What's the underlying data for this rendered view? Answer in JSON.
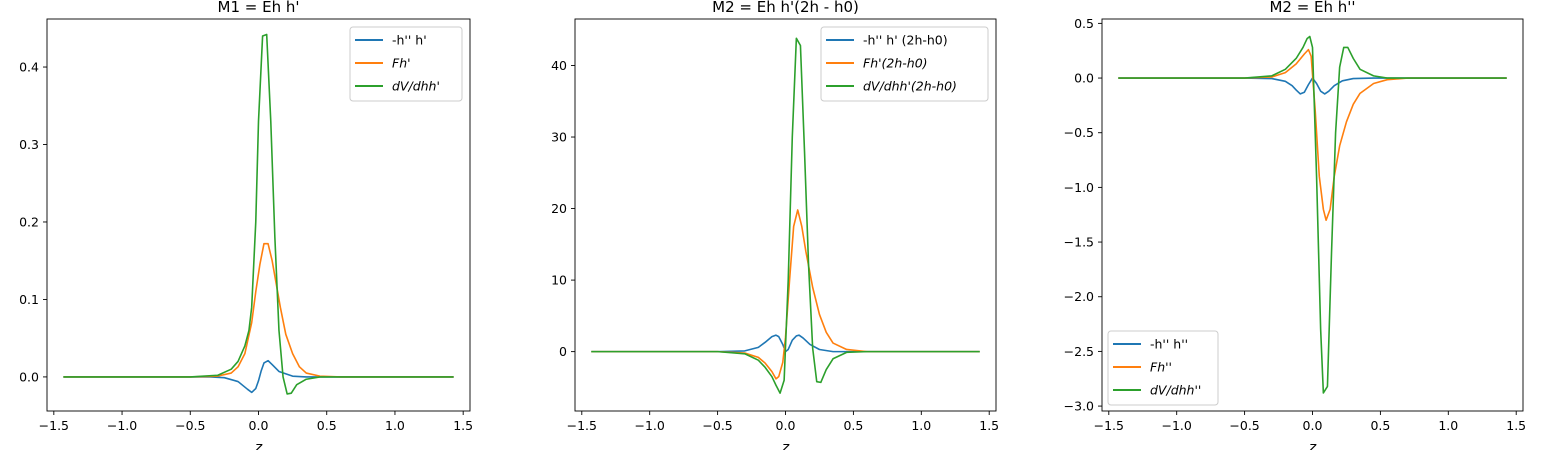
{
  "colors": {
    "blue": "#1f77b4",
    "orange": "#ff7f0e",
    "green": "#2ca02c"
  },
  "chart_data": [
    {
      "type": "line",
      "title": "M1 = Eh h'",
      "xlabel": "z",
      "ylabel": "",
      "xlim": [
        -1.55,
        1.55
      ],
      "ylim": [
        -0.044,
        0.462
      ],
      "xticks": [
        -1.5,
        -1.0,
        -0.5,
        0.0,
        0.5,
        1.0,
        1.5
      ],
      "xtick_labels": [
        "−1.5",
        "−1.0",
        "−0.5",
        "0.0",
        "0.5",
        "1.0",
        "1.5"
      ],
      "yticks": [
        0.0,
        0.1,
        0.2,
        0.3,
        0.4
      ],
      "ytick_labels": [
        "0.0",
        "0.1",
        "0.2",
        "0.3",
        "0.4"
      ],
      "legend_position": "upper right",
      "series": [
        {
          "name": "-h'' h'",
          "color": "#1f77b4",
          "points": [
            [
              -1.43,
              0
            ],
            [
              -0.6,
              0
            ],
            [
              -0.35,
              0
            ],
            [
              -0.25,
              -0.001
            ],
            [
              -0.15,
              -0.006
            ],
            [
              -0.08,
              -0.016
            ],
            [
              -0.05,
              -0.02
            ],
            [
              -0.02,
              -0.015
            ],
            [
              0.0,
              -0.005
            ],
            [
              0.02,
              0.008
            ],
            [
              0.04,
              0.018
            ],
            [
              0.07,
              0.021
            ],
            [
              0.1,
              0.016
            ],
            [
              0.15,
              0.007
            ],
            [
              0.25,
              0.001
            ],
            [
              0.35,
              0
            ],
            [
              0.6,
              0
            ],
            [
              1.43,
              0
            ]
          ]
        },
        {
          "name": "Fh'",
          "color": "#ff7f0e",
          "points": [
            [
              -1.43,
              0
            ],
            [
              -0.5,
              0
            ],
            [
              -0.3,
              0.001
            ],
            [
              -0.2,
              0.005
            ],
            [
              -0.15,
              0.013
            ],
            [
              -0.1,
              0.03
            ],
            [
              -0.05,
              0.07
            ],
            [
              -0.02,
              0.11
            ],
            [
              0.01,
              0.145
            ],
            [
              0.04,
              0.172
            ],
            [
              0.07,
              0.172
            ],
            [
              0.1,
              0.15
            ],
            [
              0.13,
              0.12
            ],
            [
              0.16,
              0.09
            ],
            [
              0.2,
              0.055
            ],
            [
              0.25,
              0.03
            ],
            [
              0.3,
              0.013
            ],
            [
              0.35,
              0.005
            ],
            [
              0.45,
              0.001
            ],
            [
              0.6,
              0
            ],
            [
              1.43,
              0
            ]
          ]
        },
        {
          "name": "dV/dhh'",
          "color": "#2ca02c",
          "points": [
            [
              -1.43,
              0
            ],
            [
              -0.5,
              0
            ],
            [
              -0.3,
              0.002
            ],
            [
              -0.2,
              0.01
            ],
            [
              -0.15,
              0.02
            ],
            [
              -0.1,
              0.04
            ],
            [
              -0.07,
              0.06
            ],
            [
              -0.05,
              0.09
            ],
            [
              -0.02,
              0.2
            ],
            [
              0.0,
              0.33
            ],
            [
              0.03,
              0.44
            ],
            [
              0.06,
              0.442
            ],
            [
              0.09,
              0.33
            ],
            [
              0.12,
              0.18
            ],
            [
              0.15,
              0.06
            ],
            [
              0.18,
              0.0
            ],
            [
              0.21,
              -0.022
            ],
            [
              0.24,
              -0.021
            ],
            [
              0.28,
              -0.01
            ],
            [
              0.35,
              -0.003
            ],
            [
              0.45,
              0
            ],
            [
              1.43,
              0
            ]
          ]
        }
      ]
    },
    {
      "type": "line",
      "title": "M2 = Eh h'(2h - h0)",
      "xlabel": "z",
      "ylabel": "",
      "xlim": [
        -1.55,
        1.55
      ],
      "ylim": [
        -8.3,
        46.5
      ],
      "xticks": [
        -1.5,
        -1.0,
        -0.5,
        0.0,
        0.5,
        1.0,
        1.5
      ],
      "xtick_labels": [
        "−1.5",
        "−1.0",
        "−0.5",
        "0.0",
        "0.5",
        "1.0",
        "1.5"
      ],
      "yticks": [
        0,
        10,
        20,
        30,
        40
      ],
      "ytick_labels": [
        "0",
        "10",
        "20",
        "30",
        "40"
      ],
      "legend_position": "upper right",
      "series": [
        {
          "name": "-h'' h' (2h-h0)",
          "color": "#1f77b4",
          "points": [
            [
              -1.43,
              0
            ],
            [
              -0.5,
              0
            ],
            [
              -0.3,
              0.1
            ],
            [
              -0.2,
              0.6
            ],
            [
              -0.15,
              1.3
            ],
            [
              -0.1,
              2.1
            ],
            [
              -0.07,
              2.3
            ],
            [
              -0.05,
              2.1
            ],
            [
              -0.02,
              1.0
            ],
            [
              0.0,
              0
            ],
            [
              0.02,
              0.3
            ],
            [
              0.05,
              1.6
            ],
            [
              0.08,
              2.2
            ],
            [
              0.1,
              2.3
            ],
            [
              0.13,
              1.9
            ],
            [
              0.18,
              1.0
            ],
            [
              0.25,
              0.3
            ],
            [
              0.35,
              0
            ],
            [
              1.43,
              0
            ]
          ]
        },
        {
          "name": "Fh'(2h-h0)",
          "color": "#ff7f0e",
          "points": [
            [
              -1.43,
              0
            ],
            [
              -0.5,
              0
            ],
            [
              -0.3,
              -0.2
            ],
            [
              -0.2,
              -0.8
            ],
            [
              -0.15,
              -1.6
            ],
            [
              -0.1,
              -2.8
            ],
            [
              -0.07,
              -3.8
            ],
            [
              -0.05,
              -3.5
            ],
            [
              -0.02,
              -1.5
            ],
            [
              0.0,
              2.0
            ],
            [
              0.03,
              10
            ],
            [
              0.06,
              17.5
            ],
            [
              0.09,
              19.8
            ],
            [
              0.12,
              17.5
            ],
            [
              0.15,
              14
            ],
            [
              0.2,
              9
            ],
            [
              0.25,
              5.2
            ],
            [
              0.3,
              2.7
            ],
            [
              0.35,
              1.2
            ],
            [
              0.45,
              0.3
            ],
            [
              0.6,
              0
            ],
            [
              1.43,
              0
            ]
          ]
        },
        {
          "name": "dV/dhh'(2h-h0)",
          "color": "#2ca02c",
          "points": [
            [
              -1.43,
              0
            ],
            [
              -0.5,
              0
            ],
            [
              -0.3,
              -0.3
            ],
            [
              -0.2,
              -1.2
            ],
            [
              -0.15,
              -2.2
            ],
            [
              -0.1,
              -3.5
            ],
            [
              -0.07,
              -4.7
            ],
            [
              -0.04,
              -5.8
            ],
            [
              -0.01,
              -4.0
            ],
            [
              0.02,
              10
            ],
            [
              0.05,
              30
            ],
            [
              0.08,
              43.8
            ],
            [
              0.11,
              42.8
            ],
            [
              0.14,
              28
            ],
            [
              0.17,
              12
            ],
            [
              0.2,
              0.5
            ],
            [
              0.23,
              -4.2
            ],
            [
              0.26,
              -4.3
            ],
            [
              0.3,
              -2.5
            ],
            [
              0.35,
              -1.0
            ],
            [
              0.45,
              -0.1
            ],
            [
              0.6,
              0
            ],
            [
              1.43,
              0
            ]
          ]
        }
      ]
    },
    {
      "type": "line",
      "title": "M2 = Eh h''",
      "xlabel": "z",
      "ylabel": "",
      "xlim": [
        -1.55,
        1.55
      ],
      "ylim": [
        -3.045,
        0.54
      ],
      "xticks": [
        -1.5,
        -1.0,
        -0.5,
        0.0,
        0.5,
        1.0,
        1.5
      ],
      "xtick_labels": [
        "−1.5",
        "−1.0",
        "−0.5",
        "0.0",
        "0.5",
        "1.0",
        "1.5"
      ],
      "yticks": [
        0.5,
        0.0,
        -0.5,
        -1.0,
        -1.5,
        -2.0,
        -2.5,
        -3.0
      ],
      "ytick_labels": [
        "0.5",
        "0.0",
        "−0.5",
        "−1.0",
        "−1.5",
        "−2.0",
        "−2.5",
        "−3.0"
      ],
      "legend_position": "lower left",
      "series": [
        {
          "name": "-h'' h''",
          "color": "#1f77b4",
          "points": [
            [
              -1.43,
              0
            ],
            [
              -0.5,
              0
            ],
            [
              -0.3,
              -0.005
            ],
            [
              -0.2,
              -0.03
            ],
            [
              -0.15,
              -0.07
            ],
            [
              -0.12,
              -0.11
            ],
            [
              -0.09,
              -0.145
            ],
            [
              -0.06,
              -0.13
            ],
            [
              -0.03,
              -0.06
            ],
            [
              0.0,
              0.0
            ],
            [
              0.03,
              -0.05
            ],
            [
              0.06,
              -0.12
            ],
            [
              0.09,
              -0.145
            ],
            [
              0.12,
              -0.12
            ],
            [
              0.16,
              -0.07
            ],
            [
              0.22,
              -0.025
            ],
            [
              0.3,
              -0.005
            ],
            [
              0.45,
              0
            ],
            [
              1.43,
              0
            ]
          ]
        },
        {
          "name": "Fh''",
          "color": "#ff7f0e",
          "points": [
            [
              -1.43,
              0
            ],
            [
              -0.5,
              0
            ],
            [
              -0.3,
              0.01
            ],
            [
              -0.2,
              0.05
            ],
            [
              -0.12,
              0.13
            ],
            [
              -0.06,
              0.22
            ],
            [
              -0.03,
              0.26
            ],
            [
              -0.01,
              0.2
            ],
            [
              0.02,
              -0.3
            ],
            [
              0.05,
              -0.9
            ],
            [
              0.08,
              -1.2
            ],
            [
              0.1,
              -1.3
            ],
            [
              0.13,
              -1.2
            ],
            [
              0.16,
              -0.9
            ],
            [
              0.2,
              -0.62
            ],
            [
              0.25,
              -0.4
            ],
            [
              0.3,
              -0.24
            ],
            [
              0.35,
              -0.14
            ],
            [
              0.45,
              -0.05
            ],
            [
              0.55,
              -0.015
            ],
            [
              0.7,
              0
            ],
            [
              1.43,
              0
            ]
          ]
        },
        {
          "name": "dV/dhh''",
          "color": "#2ca02c",
          "points": [
            [
              -1.43,
              0
            ],
            [
              -0.5,
              0
            ],
            [
              -0.3,
              0.02
            ],
            [
              -0.2,
              0.08
            ],
            [
              -0.12,
              0.18
            ],
            [
              -0.07,
              0.28
            ],
            [
              -0.04,
              0.36
            ],
            [
              -0.02,
              0.38
            ],
            [
              0.0,
              0.28
            ],
            [
              0.03,
              -0.9
            ],
            [
              0.06,
              -2.3
            ],
            [
              0.08,
              -2.88
            ],
            [
              0.11,
              -2.82
            ],
            [
              0.14,
              -1.6
            ],
            [
              0.17,
              -0.5
            ],
            [
              0.2,
              0.1
            ],
            [
              0.23,
              0.28
            ],
            [
              0.26,
              0.28
            ],
            [
              0.3,
              0.18
            ],
            [
              0.35,
              0.08
            ],
            [
              0.45,
              0.02
            ],
            [
              0.55,
              0
            ],
            [
              1.43,
              0
            ]
          ]
        }
      ]
    }
  ]
}
